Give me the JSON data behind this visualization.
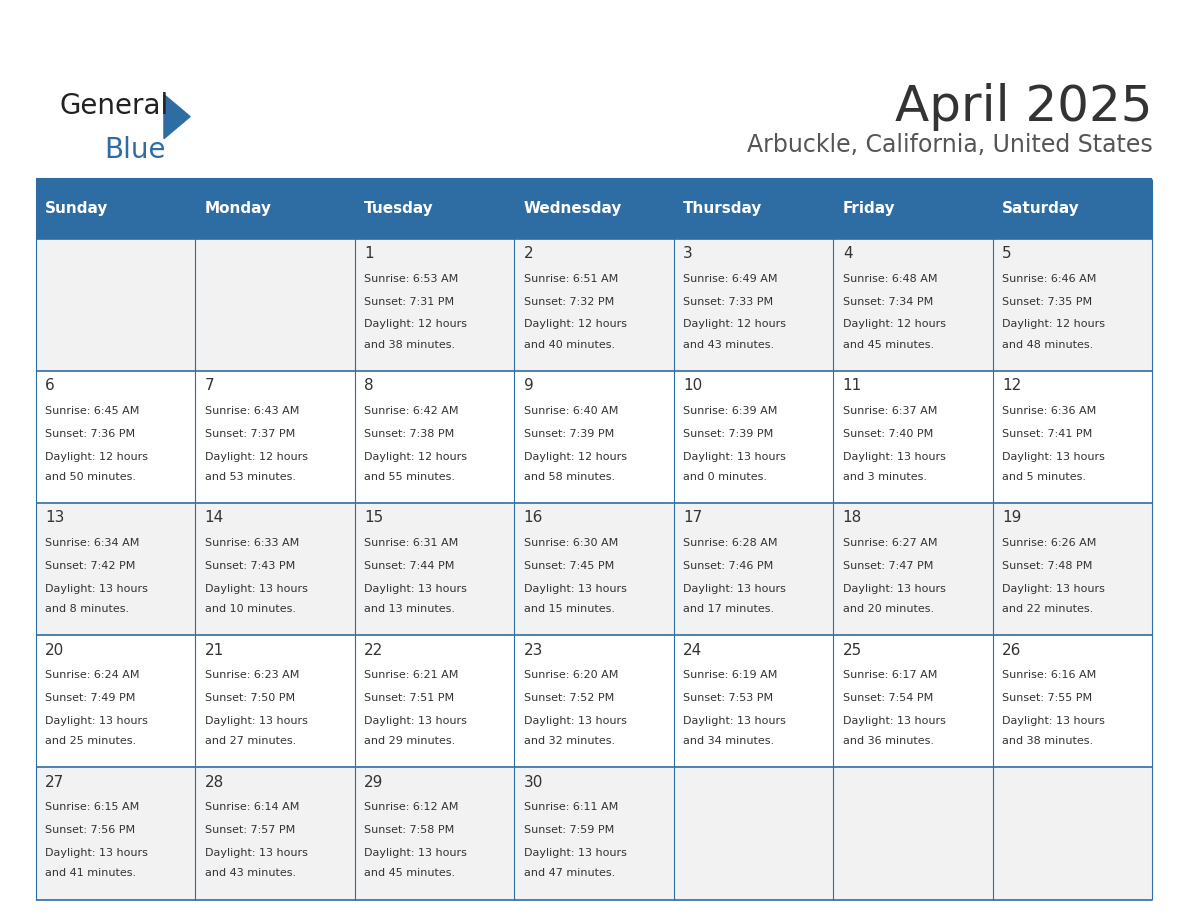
{
  "title": "April 2025",
  "subtitle": "Arbuckle, California, United States",
  "days_of_week": [
    "Sunday",
    "Monday",
    "Tuesday",
    "Wednesday",
    "Thursday",
    "Friday",
    "Saturday"
  ],
  "header_bg": "#2E6DA4",
  "header_text": "#FFFFFF",
  "row_bg_even": "#F2F2F2",
  "row_bg_odd": "#FFFFFF",
  "cell_border": "#2E6DA4",
  "day_number_color": "#333333",
  "cell_text_color": "#333333",
  "title_color": "#333333",
  "subtitle_color": "#555555",
  "calendar": [
    [
      {
        "day": "",
        "sunrise": "",
        "sunset": "",
        "daylight": ""
      },
      {
        "day": "",
        "sunrise": "",
        "sunset": "",
        "daylight": ""
      },
      {
        "day": "1",
        "sunrise": "Sunrise: 6:53 AM",
        "sunset": "Sunset: 7:31 PM",
        "daylight": "Daylight: 12 hours\nand 38 minutes."
      },
      {
        "day": "2",
        "sunrise": "Sunrise: 6:51 AM",
        "sunset": "Sunset: 7:32 PM",
        "daylight": "Daylight: 12 hours\nand 40 minutes."
      },
      {
        "day": "3",
        "sunrise": "Sunrise: 6:49 AM",
        "sunset": "Sunset: 7:33 PM",
        "daylight": "Daylight: 12 hours\nand 43 minutes."
      },
      {
        "day": "4",
        "sunrise": "Sunrise: 6:48 AM",
        "sunset": "Sunset: 7:34 PM",
        "daylight": "Daylight: 12 hours\nand 45 minutes."
      },
      {
        "day": "5",
        "sunrise": "Sunrise: 6:46 AM",
        "sunset": "Sunset: 7:35 PM",
        "daylight": "Daylight: 12 hours\nand 48 minutes."
      }
    ],
    [
      {
        "day": "6",
        "sunrise": "Sunrise: 6:45 AM",
        "sunset": "Sunset: 7:36 PM",
        "daylight": "Daylight: 12 hours\nand 50 minutes."
      },
      {
        "day": "7",
        "sunrise": "Sunrise: 6:43 AM",
        "sunset": "Sunset: 7:37 PM",
        "daylight": "Daylight: 12 hours\nand 53 minutes."
      },
      {
        "day": "8",
        "sunrise": "Sunrise: 6:42 AM",
        "sunset": "Sunset: 7:38 PM",
        "daylight": "Daylight: 12 hours\nand 55 minutes."
      },
      {
        "day": "9",
        "sunrise": "Sunrise: 6:40 AM",
        "sunset": "Sunset: 7:39 PM",
        "daylight": "Daylight: 12 hours\nand 58 minutes."
      },
      {
        "day": "10",
        "sunrise": "Sunrise: 6:39 AM",
        "sunset": "Sunset: 7:39 PM",
        "daylight": "Daylight: 13 hours\nand 0 minutes."
      },
      {
        "day": "11",
        "sunrise": "Sunrise: 6:37 AM",
        "sunset": "Sunset: 7:40 PM",
        "daylight": "Daylight: 13 hours\nand 3 minutes."
      },
      {
        "day": "12",
        "sunrise": "Sunrise: 6:36 AM",
        "sunset": "Sunset: 7:41 PM",
        "daylight": "Daylight: 13 hours\nand 5 minutes."
      }
    ],
    [
      {
        "day": "13",
        "sunrise": "Sunrise: 6:34 AM",
        "sunset": "Sunset: 7:42 PM",
        "daylight": "Daylight: 13 hours\nand 8 minutes."
      },
      {
        "day": "14",
        "sunrise": "Sunrise: 6:33 AM",
        "sunset": "Sunset: 7:43 PM",
        "daylight": "Daylight: 13 hours\nand 10 minutes."
      },
      {
        "day": "15",
        "sunrise": "Sunrise: 6:31 AM",
        "sunset": "Sunset: 7:44 PM",
        "daylight": "Daylight: 13 hours\nand 13 minutes."
      },
      {
        "day": "16",
        "sunrise": "Sunrise: 6:30 AM",
        "sunset": "Sunset: 7:45 PM",
        "daylight": "Daylight: 13 hours\nand 15 minutes."
      },
      {
        "day": "17",
        "sunrise": "Sunrise: 6:28 AM",
        "sunset": "Sunset: 7:46 PM",
        "daylight": "Daylight: 13 hours\nand 17 minutes."
      },
      {
        "day": "18",
        "sunrise": "Sunrise: 6:27 AM",
        "sunset": "Sunset: 7:47 PM",
        "daylight": "Daylight: 13 hours\nand 20 minutes."
      },
      {
        "day": "19",
        "sunrise": "Sunrise: 6:26 AM",
        "sunset": "Sunset: 7:48 PM",
        "daylight": "Daylight: 13 hours\nand 22 minutes."
      }
    ],
    [
      {
        "day": "20",
        "sunrise": "Sunrise: 6:24 AM",
        "sunset": "Sunset: 7:49 PM",
        "daylight": "Daylight: 13 hours\nand 25 minutes."
      },
      {
        "day": "21",
        "sunrise": "Sunrise: 6:23 AM",
        "sunset": "Sunset: 7:50 PM",
        "daylight": "Daylight: 13 hours\nand 27 minutes."
      },
      {
        "day": "22",
        "sunrise": "Sunrise: 6:21 AM",
        "sunset": "Sunset: 7:51 PM",
        "daylight": "Daylight: 13 hours\nand 29 minutes."
      },
      {
        "day": "23",
        "sunrise": "Sunrise: 6:20 AM",
        "sunset": "Sunset: 7:52 PM",
        "daylight": "Daylight: 13 hours\nand 32 minutes."
      },
      {
        "day": "24",
        "sunrise": "Sunrise: 6:19 AM",
        "sunset": "Sunset: 7:53 PM",
        "daylight": "Daylight: 13 hours\nand 34 minutes."
      },
      {
        "day": "25",
        "sunrise": "Sunrise: 6:17 AM",
        "sunset": "Sunset: 7:54 PM",
        "daylight": "Daylight: 13 hours\nand 36 minutes."
      },
      {
        "day": "26",
        "sunrise": "Sunrise: 6:16 AM",
        "sunset": "Sunset: 7:55 PM",
        "daylight": "Daylight: 13 hours\nand 38 minutes."
      }
    ],
    [
      {
        "day": "27",
        "sunrise": "Sunrise: 6:15 AM",
        "sunset": "Sunset: 7:56 PM",
        "daylight": "Daylight: 13 hours\nand 41 minutes."
      },
      {
        "day": "28",
        "sunrise": "Sunrise: 6:14 AM",
        "sunset": "Sunset: 7:57 PM",
        "daylight": "Daylight: 13 hours\nand 43 minutes."
      },
      {
        "day": "29",
        "sunrise": "Sunrise: 6:12 AM",
        "sunset": "Sunset: 7:58 PM",
        "daylight": "Daylight: 13 hours\nand 45 minutes."
      },
      {
        "day": "30",
        "sunrise": "Sunrise: 6:11 AM",
        "sunset": "Sunset: 7:59 PM",
        "daylight": "Daylight: 13 hours\nand 47 minutes."
      },
      {
        "day": "",
        "sunrise": "",
        "sunset": "",
        "daylight": ""
      },
      {
        "day": "",
        "sunrise": "",
        "sunset": "",
        "daylight": ""
      },
      {
        "day": "",
        "sunrise": "",
        "sunset": "",
        "daylight": ""
      }
    ]
  ],
  "logo_text1": "General",
  "logo_text2": "Blue",
  "logo_text1_color": "#222222",
  "logo_text2_color": "#2E6DA4",
  "logo_triangle_color": "#2E6DA4"
}
